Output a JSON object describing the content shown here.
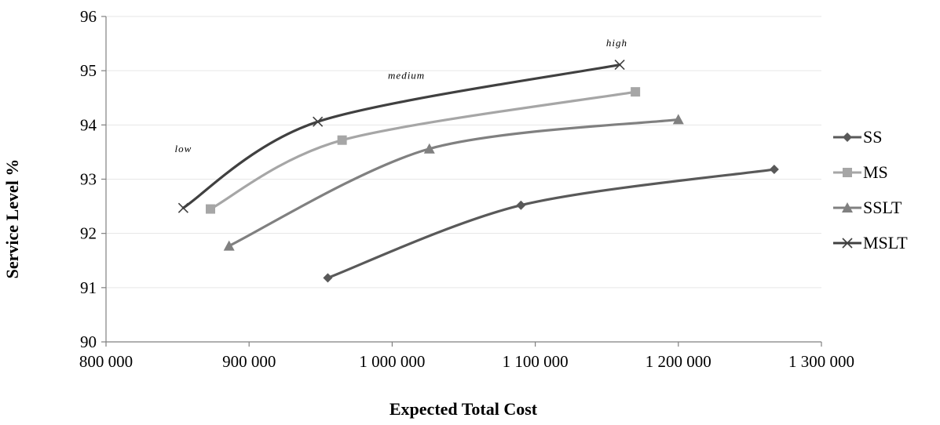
{
  "chart_data": {
    "type": "line",
    "title": "",
    "xlabel": "Expected Total Cost",
    "ylabel": "Service  Level  %",
    "xlim": [
      800000,
      1300000
    ],
    "ylim": [
      90,
      96
    ],
    "xticks": [
      800000,
      900000,
      1000000,
      1100000,
      1200000,
      1300000
    ],
    "xtick_labels": [
      "800 000",
      "900 000",
      "1 000 000",
      "1 100 000",
      "1 200 000",
      "1 300 000"
    ],
    "yticks": [
      90,
      91,
      92,
      93,
      94,
      95,
      96
    ],
    "ytick_labels": [
      "90",
      "91",
      "92",
      "93",
      "94",
      "95",
      "96"
    ],
    "grid": "horizontal",
    "legend_position": "right",
    "series": [
      {
        "name": "SS",
        "marker": "diamond",
        "color": "#595959",
        "x": [
          955000,
          1090000,
          1267000
        ],
        "y": [
          91.18,
          92.52,
          93.18
        ]
      },
      {
        "name": "MS",
        "marker": "square",
        "color": "#a6a6a6",
        "x": [
          873000,
          965000,
          1170000
        ],
        "y": [
          92.45,
          93.72,
          94.61
        ]
      },
      {
        "name": "SSLT",
        "marker": "triangle",
        "color": "#808080",
        "x": [
          886000,
          1026000,
          1200000
        ],
        "y": [
          91.77,
          93.56,
          94.1
        ]
      },
      {
        "name": "MSLT",
        "marker": "x",
        "color": "#404040",
        "x": [
          854000,
          948000,
          1159000
        ],
        "y": [
          92.47,
          94.06,
          95.11
        ]
      }
    ],
    "annotations": [
      {
        "text": "low",
        "x": 854000,
        "y": 93.5
      },
      {
        "text": "medium",
        "x": 1010000,
        "y": 94.85
      },
      {
        "text": "high",
        "x": 1157000,
        "y": 95.45
      }
    ]
  }
}
